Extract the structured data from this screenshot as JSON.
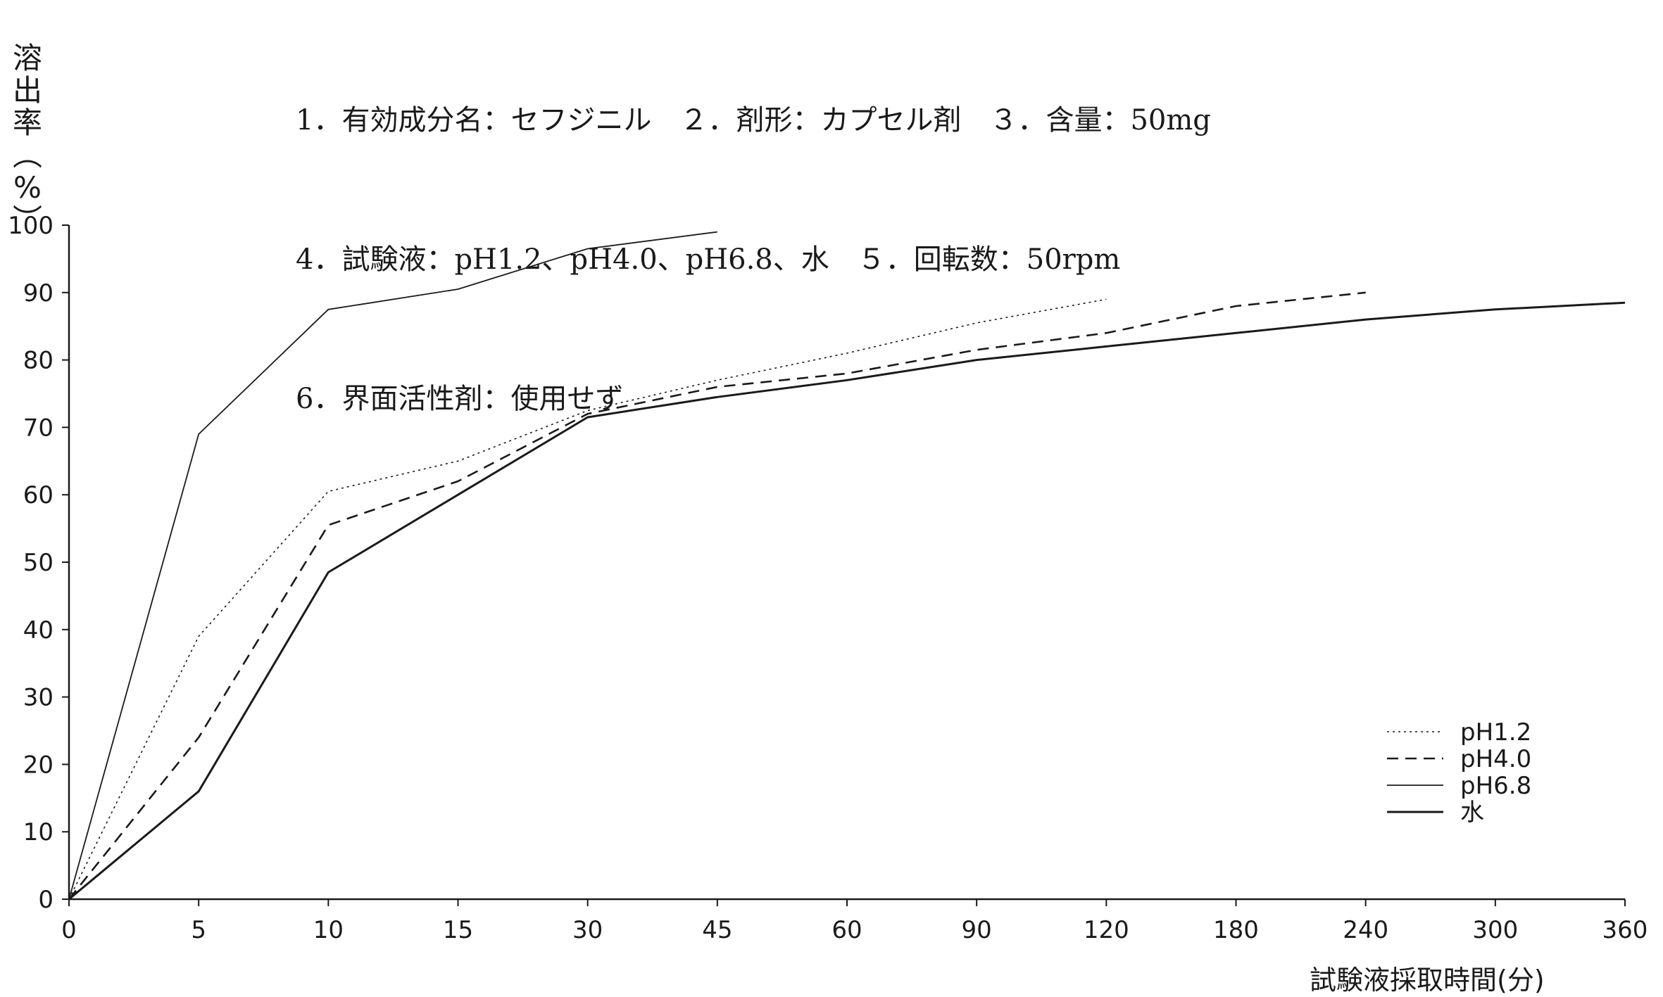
{
  "header": {
    "lines": [
      "1．有効成分名：セフジニル　２．剤形：カプセル剤　３．含量：50mg",
      "4．試験液：pH1.2、pH4.0、pH6.8、水　５．回転数：50rpm",
      "6．界面活性剤：使用せず"
    ]
  },
  "chart_data": {
    "type": "line",
    "title": "",
    "ylabel": "溶出率(%)",
    "xlabel": "試験液採取時間(分)",
    "ylim": [
      0,
      100
    ],
    "yticks": [
      "0",
      "10",
      "20",
      "30",
      "40",
      "50",
      "60",
      "70",
      "80",
      "90",
      "100"
    ],
    "x": [
      "0",
      "5",
      "10",
      "15",
      "30",
      "45",
      "60",
      "90",
      "120",
      "180",
      "240",
      "300",
      "360"
    ],
    "legend_position": "bottom-right",
    "grid": false,
    "series": [
      {
        "name": "pH1.2",
        "style": "dotted",
        "color": "#1a1a1a",
        "values": [
          0,
          39,
          60.5,
          65,
          72.5,
          77,
          81,
          85.5,
          89,
          null,
          null,
          null,
          null
        ]
      },
      {
        "name": "pH4.0",
        "style": "dashed",
        "color": "#1a1a1a",
        "values": [
          0,
          24,
          55.5,
          62,
          72,
          76,
          78,
          81.5,
          84,
          88,
          90,
          null,
          null
        ]
      },
      {
        "name": "pH6.8",
        "style": "thin",
        "color": "#1a1a1a",
        "values": [
          0,
          69,
          87.5,
          90.5,
          96.5,
          99,
          null,
          null,
          null,
          null,
          null,
          null,
          null
        ]
      },
      {
        "name": "水",
        "style": "solid",
        "color": "#1a1a1a",
        "values": [
          0,
          16,
          48.5,
          60,
          71.5,
          74.5,
          77,
          80,
          82,
          84,
          86,
          87.5,
          88.5
        ]
      }
    ]
  }
}
